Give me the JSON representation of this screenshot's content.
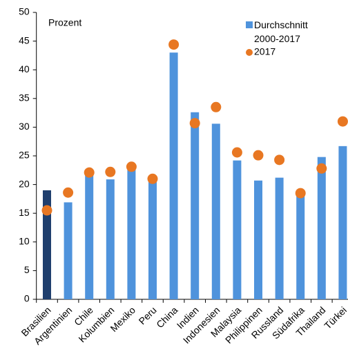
{
  "chart_data": {
    "type": "bar_dot",
    "annotation": "Prozent",
    "categories": [
      "Brasilien",
      "Argentinien",
      "Chile",
      "Kolumbien",
      "Mexiko",
      "Peru",
      "China",
      "Indien",
      "Indonesien",
      "Malaysia",
      "Philippinen",
      "Russland",
      "Südafrika",
      "Thailand",
      "Türkei"
    ],
    "series": [
      {
        "name": "Durchschnitt 2000-2017",
        "color": "#4f93dc",
        "colors": [
          "#1f3f6e",
          "#4f93dc",
          "#4f93dc",
          "#4f93dc",
          "#4f93dc",
          "#4f93dc",
          "#4f93dc",
          "#4f93dc",
          "#4f93dc",
          "#4f93dc",
          "#4f93dc",
          "#4f93dc",
          "#4f93dc",
          "#4f93dc",
          "#4f93dc"
        ],
        "values": [
          19,
          16.9,
          22,
          20.9,
          22.8,
          20.5,
          43,
          32.6,
          30.6,
          24.2,
          20.7,
          21.2,
          18,
          24.8,
          26.7
        ]
      },
      {
        "name": "2017",
        "color": "#e87722",
        "values": [
          15.5,
          18.6,
          22.1,
          22.2,
          23.1,
          21,
          44.4,
          30.7,
          33.5,
          25.6,
          25.1,
          24.3,
          18.5,
          22.8,
          31
        ]
      }
    ],
    "ylim": [
      0,
      50
    ],
    "yticks": [
      0,
      5,
      10,
      15,
      20,
      25,
      30,
      35,
      40,
      45,
      50
    ]
  }
}
